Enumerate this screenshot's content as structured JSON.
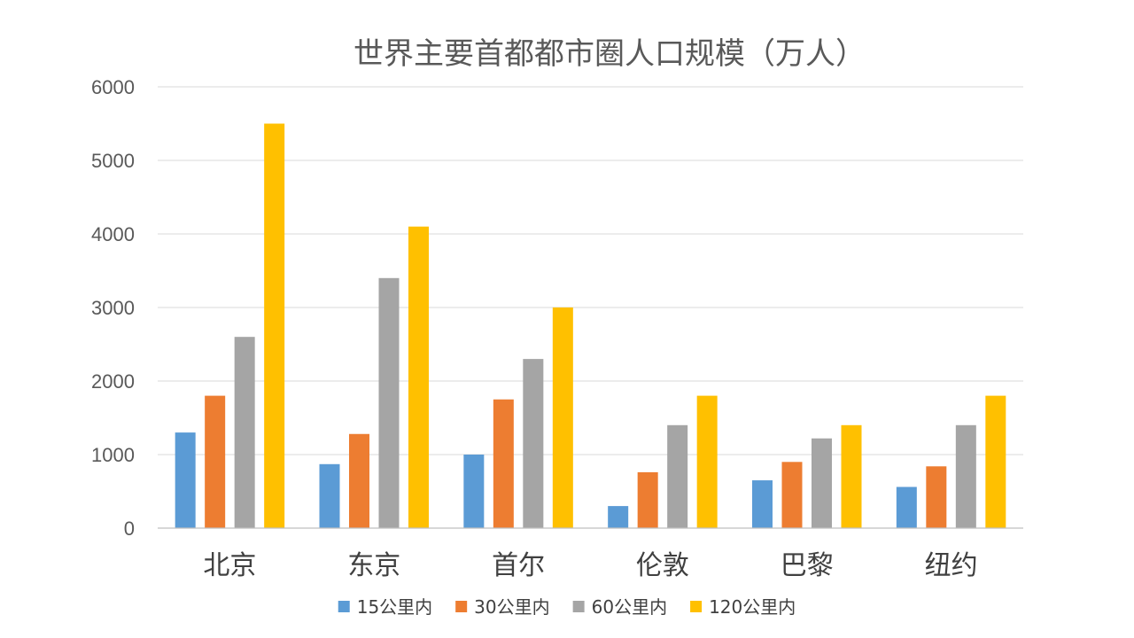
{
  "chart_data": {
    "type": "bar",
    "title": "世界主要首都都市圈人口规模（万人）",
    "xlabel": "",
    "ylabel": "",
    "ylim": [
      0,
      6000
    ],
    "yticks": [
      0,
      1000,
      2000,
      3000,
      4000,
      5000,
      6000
    ],
    "ytick_labels": [
      "0",
      "1000",
      "2000",
      "3000",
      "4000",
      "5000",
      "6000"
    ],
    "grid": true,
    "legend_position": "bottom",
    "categories": [
      "北京",
      "东京",
      "首尔",
      "伦敦",
      "巴黎",
      "纽约"
    ],
    "series": [
      {
        "name": "15公里内",
        "color": "#5B9BD5",
        "values": [
          1300,
          870,
          1000,
          300,
          650,
          560
        ]
      },
      {
        "name": "30公里内",
        "color": "#ED7D31",
        "values": [
          1800,
          1280,
          1750,
          760,
          900,
          840
        ]
      },
      {
        "name": "60公里内",
        "color": "#A5A5A5",
        "values": [
          2600,
          3400,
          2300,
          1400,
          1220,
          1400
        ]
      },
      {
        "name": "120公里内",
        "color": "#FFC000",
        "values": [
          5500,
          4100,
          3000,
          1800,
          1400,
          1800
        ]
      }
    ]
  }
}
